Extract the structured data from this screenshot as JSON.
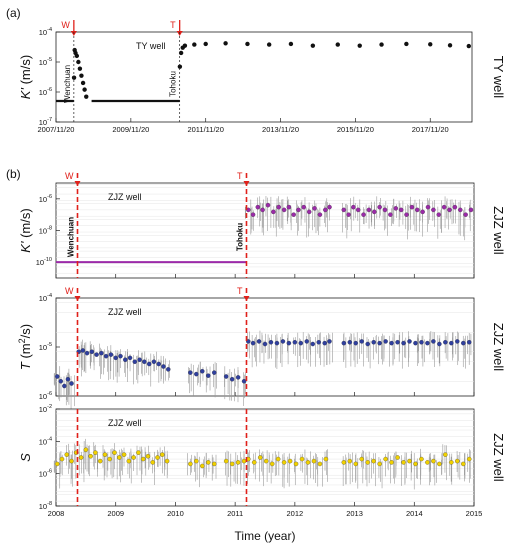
{
  "chart_data": [
    {
      "panel": "(a)",
      "type": "scatter",
      "title": "TY well",
      "side_label": "TY well",
      "ylabel": "K' (m/s)",
      "yscale": "log",
      "ylim": [
        1e-07,
        0.0001
      ],
      "ytick_exponents": [
        "-4",
        "-5",
        "-6",
        "-7"
      ],
      "xlim": [
        "2007-11-20",
        "2019-01-01"
      ],
      "xtick_labels": [
        "2007/11/20",
        "2009/11/20",
        "2011/11/20",
        "2013/11/20",
        "2015/11/20",
        "2017/11/20"
      ],
      "events": [
        {
          "marker": "W",
          "label": "Wenchuan",
          "date": "2008-05-12"
        },
        {
          "marker": "T",
          "label": "Tohoku",
          "date": "2011-03-11"
        }
      ],
      "series": [
        {
          "color": "#111111",
          "segments": [
            {
              "from": "2007-11-20",
              "to": "2008-05-10",
              "value": 5e-07
            },
            {
              "from": "2008-11-01",
              "to": "2011-03-10",
              "value": 5e-07
            }
          ],
          "points": [
            [
              "2008-05-14",
              3e-06
            ],
            [
              "2008-05-20",
              2.5e-05
            ],
            [
              "2008-05-28",
              2e-05
            ],
            [
              "2008-06-10",
              1.6e-05
            ],
            [
              "2008-06-25",
              1e-05
            ],
            [
              "2008-07-10",
              6e-06
            ],
            [
              "2008-07-25",
              3.5e-06
            ],
            [
              "2008-08-10",
              2e-06
            ],
            [
              "2008-08-25",
              1.2e-06
            ],
            [
              "2008-09-10",
              7e-07
            ],
            [
              "2011-03-13",
              7e-06
            ],
            [
              "2011-03-25",
              2e-05
            ],
            [
              "2011-04-10",
              3e-05
            ],
            [
              "2011-05-01",
              3.5e-05
            ],
            [
              "2011-08-01",
              3.8e-05
            ],
            [
              "2011-11-20",
              4e-05
            ],
            [
              "2012-06-01",
              4.2e-05
            ],
            [
              "2013-01-01",
              4e-05
            ],
            [
              "2013-08-01",
              3.8e-05
            ],
            [
              "2014-03-01",
              4e-05
            ],
            [
              "2014-10-01",
              3.5e-05
            ],
            [
              "2015-06-01",
              3.8e-05
            ],
            [
              "2016-01-01",
              3.5e-05
            ],
            [
              "2016-08-01",
              3.8e-05
            ],
            [
              "2017-04-01",
              4e-05
            ],
            [
              "2017-11-20",
              3.9e-05
            ],
            [
              "2018-06-01",
              3.6e-05
            ],
            [
              "2018-12-01",
              3.4e-05
            ]
          ]
        }
      ]
    },
    {
      "panel": "(b)",
      "type": "scatter",
      "title": "ZJZ well",
      "side_label": "ZJZ well",
      "ylabel": "K' (m/s)",
      "yscale": "log",
      "ylim": [
        1e-11,
        1e-05
      ],
      "ytick_exponents": [
        "-6",
        "-8",
        "-10"
      ],
      "xlim": [
        2008.0,
        2015.0
      ],
      "events": [
        {
          "marker": "W",
          "label": "Wenchuan",
          "year": 2008.36
        },
        {
          "marker": "T",
          "label": "Tohoku",
          "year": 2011.19
        }
      ],
      "series": [
        {
          "color": "#9b2aa8",
          "segments": [
            {
              "from": 2008.0,
              "to": 2011.19,
              "value": 1e-10
            }
          ],
          "points": [
            [
              2011.22,
              2e-07
            ],
            [
              2011.3,
              1e-07
            ],
            [
              2011.38,
              3e-07
            ],
            [
              2011.46,
              2e-07
            ],
            [
              2011.55,
              4e-07
            ],
            [
              2011.64,
              1.5e-07
            ],
            [
              2011.73,
              3e-07
            ],
            [
              2011.82,
              2e-07
            ],
            [
              2011.9,
              3e-07
            ],
            [
              2011.98,
              1e-07
            ],
            [
              2012.06,
              2e-07
            ],
            [
              2012.15,
              3e-07
            ],
            [
              2012.24,
              1.5e-07
            ],
            [
              2012.33,
              2.5e-07
            ],
            [
              2012.42,
              1e-07
            ],
            [
              2012.51,
              2e-07
            ],
            [
              2012.58,
              3e-07
            ],
            [
              2012.82,
              2e-07
            ],
            [
              2012.9,
              1e-07
            ],
            [
              2012.98,
              3e-07
            ],
            [
              2013.06,
              2e-07
            ],
            [
              2013.15,
              1e-07
            ],
            [
              2013.24,
              2e-07
            ],
            [
              2013.33,
              1.5e-07
            ],
            [
              2013.42,
              3e-07
            ],
            [
              2013.51,
              2e-07
            ],
            [
              2013.6,
              1e-07
            ],
            [
              2013.69,
              2.5e-07
            ],
            [
              2013.78,
              2e-07
            ],
            [
              2013.87,
              1e-07
            ],
            [
              2013.96,
              3e-07
            ],
            [
              2014.05,
              2e-07
            ],
            [
              2014.14,
              1.5e-07
            ],
            [
              2014.23,
              3e-07
            ],
            [
              2014.32,
              2e-07
            ],
            [
              2014.41,
              1e-07
            ],
            [
              2014.5,
              3e-07
            ],
            [
              2014.59,
              2e-07
            ],
            [
              2014.68,
              3e-07
            ],
            [
              2014.77,
              2e-07
            ],
            [
              2014.86,
              1e-07
            ],
            [
              2014.95,
              2e-07
            ]
          ]
        }
      ]
    },
    {
      "panel": "(b)",
      "type": "scatter",
      "title": "ZJZ well",
      "side_label": "ZJZ well",
      "ylabel": "T (m2/s)",
      "yscale": "log",
      "ylim": [
        1e-06,
        0.0001
      ],
      "ytick_exponents": [
        "-4",
        "-5",
        "-6"
      ],
      "xlim": [
        2008.0,
        2015.0
      ],
      "events": [
        {
          "marker": "W",
          "year": 2008.36
        },
        {
          "marker": "T",
          "year": 2011.19
        }
      ],
      "series": [
        {
          "color": "#2f3f9e",
          "points": [
            [
              2008.02,
              2.5e-06
            ],
            [
              2008.08,
              2e-06
            ],
            [
              2008.14,
              1.6e-06
            ],
            [
              2008.2,
              2.2e-06
            ],
            [
              2008.26,
              1.8e-06
            ],
            [
              2008.38,
              8e-06
            ],
            [
              2008.45,
              8.5e-06
            ],
            [
              2008.52,
              7.5e-06
            ],
            [
              2008.6,
              8e-06
            ],
            [
              2008.68,
              7e-06
            ],
            [
              2008.76,
              7.5e-06
            ],
            [
              2008.84,
              6.5e-06
            ],
            [
              2008.92,
              7e-06
            ],
            [
              2009.0,
              6e-06
            ],
            [
              2009.08,
              6.5e-06
            ],
            [
              2009.16,
              5.5e-06
            ],
            [
              2009.24,
              6e-06
            ],
            [
              2009.32,
              5e-06
            ],
            [
              2009.4,
              5.5e-06
            ],
            [
              2009.48,
              5e-06
            ],
            [
              2009.56,
              4.5e-06
            ],
            [
              2009.64,
              5e-06
            ],
            [
              2009.72,
              4.5e-06
            ],
            [
              2009.8,
              4e-06
            ],
            [
              2009.88,
              3.5e-06
            ],
            [
              2010.25,
              3e-06
            ],
            [
              2010.35,
              2.8e-06
            ],
            [
              2010.45,
              3.2e-06
            ],
            [
              2010.55,
              2.6e-06
            ],
            [
              2010.65,
              3e-06
            ],
            [
              2010.85,
              2.5e-06
            ],
            [
              2010.95,
              2.2e-06
            ],
            [
              2011.05,
              2.4e-06
            ],
            [
              2011.15,
              2e-06
            ],
            [
              2011.22,
              1.3e-05
            ],
            [
              2011.3,
              1.2e-05
            ],
            [
              2011.4,
              1.3e-05
            ],
            [
              2011.5,
              1.15e-05
            ],
            [
              2011.6,
              1.25e-05
            ],
            [
              2011.7,
              1.2e-05
            ],
            [
              2011.8,
              1.3e-05
            ],
            [
              2011.9,
              1.2e-05
            ],
            [
              2012.0,
              1.25e-05
            ],
            [
              2012.1,
              1.2e-05
            ],
            [
              2012.2,
              1.3e-05
            ],
            [
              2012.3,
              1.15e-05
            ],
            [
              2012.4,
              1.25e-05
            ],
            [
              2012.5,
              1.2e-05
            ],
            [
              2012.58,
              1.3e-05
            ],
            [
              2012.82,
              1.2e-05
            ],
            [
              2012.92,
              1.25e-05
            ],
            [
              2013.02,
              1.2e-05
            ],
            [
              2013.12,
              1.3e-05
            ],
            [
              2013.22,
              1.15e-05
            ],
            [
              2013.32,
              1.25e-05
            ],
            [
              2013.42,
              1.2e-05
            ],
            [
              2013.52,
              1.3e-05
            ],
            [
              2013.62,
              1.2e-05
            ],
            [
              2013.72,
              1.25e-05
            ],
            [
              2013.82,
              1.2e-05
            ],
            [
              2013.92,
              1.3e-05
            ],
            [
              2014.02,
              1.2e-05
            ],
            [
              2014.12,
              1.25e-05
            ],
            [
              2014.22,
              1.2e-05
            ],
            [
              2014.32,
              1.3e-05
            ],
            [
              2014.42,
              1.15e-05
            ],
            [
              2014.52,
              1.25e-05
            ],
            [
              2014.62,
              1.2e-05
            ],
            [
              2014.72,
              1.3e-05
            ],
            [
              2014.82,
              1.2e-05
            ],
            [
              2014.92,
              1.25e-05
            ]
          ]
        }
      ]
    },
    {
      "panel": "(b)",
      "type": "scatter",
      "title": "ZJZ well",
      "side_label": "ZJZ well",
      "ylabel": "S",
      "yscale": "log",
      "ylim": [
        1e-08,
        0.01
      ],
      "ytick_exponents": [
        "-2",
        "-4",
        "-6",
        "-8"
      ],
      "xlim": [
        2008.0,
        2015.0
      ],
      "xtick_labels": [
        "2008",
        "2009",
        "2010",
        "2011",
        "2012",
        "2013",
        "2014",
        "2015"
      ],
      "xlabel": "Time (year)",
      "events": [
        {
          "year": 2008.36
        },
        {
          "year": 2011.19
        }
      ],
      "series": [
        {
          "color": "#f0d000",
          "points": [
            [
              2008.02,
              4e-06
            ],
            [
              2008.1,
              8e-06
            ],
            [
              2008.18,
              1.5e-05
            ],
            [
              2008.26,
              6e-06
            ],
            [
              2008.34,
              2e-05
            ],
            [
              2008.42,
              1e-05
            ],
            [
              2008.5,
              3e-05
            ],
            [
              2008.58,
              1.2e-05
            ],
            [
              2008.66,
              2e-05
            ],
            [
              2008.74,
              6e-06
            ],
            [
              2008.82,
              1.5e-05
            ],
            [
              2008.9,
              8e-06
            ],
            [
              2008.98,
              2e-05
            ],
            [
              2009.06,
              1e-05
            ],
            [
              2009.14,
              1.5e-05
            ],
            [
              2009.22,
              6e-06
            ],
            [
              2009.3,
              1e-05
            ],
            [
              2009.38,
              2e-05
            ],
            [
              2009.46,
              8e-06
            ],
            [
              2009.54,
              1.2e-05
            ],
            [
              2009.62,
              5e-06
            ],
            [
              2009.7,
              1e-05
            ],
            [
              2009.78,
              1.5e-05
            ],
            [
              2009.86,
              6e-06
            ],
            [
              2010.25,
              4e-06
            ],
            [
              2010.35,
              6e-06
            ],
            [
              2010.45,
              3e-06
            ],
            [
              2010.55,
              5e-06
            ],
            [
              2010.65,
              4e-06
            ],
            [
              2010.85,
              6e-06
            ],
            [
              2010.95,
              4e-06
            ],
            [
              2011.05,
              5e-06
            ],
            [
              2011.15,
              6e-06
            ],
            [
              2011.22,
              8e-06
            ],
            [
              2011.32,
              5e-06
            ],
            [
              2011.42,
              1e-05
            ],
            [
              2011.52,
              6e-06
            ],
            [
              2011.62,
              4e-06
            ],
            [
              2011.72,
              8e-06
            ],
            [
              2011.82,
              5e-06
            ],
            [
              2011.92,
              6e-06
            ],
            [
              2012.02,
              4e-06
            ],
            [
              2012.12,
              8e-06
            ],
            [
              2012.22,
              5e-06
            ],
            [
              2012.32,
              6e-06
            ],
            [
              2012.42,
              4e-06
            ],
            [
              2012.52,
              8e-06
            ],
            [
              2012.82,
              5e-06
            ],
            [
              2012.92,
              6e-06
            ],
            [
              2013.02,
              4e-06
            ],
            [
              2013.12,
              8e-06
            ],
            [
              2013.22,
              5e-06
            ],
            [
              2013.32,
              6e-06
            ],
            [
              2013.42,
              4e-06
            ],
            [
              2013.52,
              8e-06
            ],
            [
              2013.62,
              5e-06
            ],
            [
              2013.72,
              1e-05
            ],
            [
              2013.82,
              5e-06
            ],
            [
              2013.92,
              6e-06
            ],
            [
              2014.02,
              4e-06
            ],
            [
              2014.12,
              8e-06
            ],
            [
              2014.22,
              5e-06
            ],
            [
              2014.32,
              6e-06
            ],
            [
              2014.42,
              4e-06
            ],
            [
              2014.52,
              1.5e-05
            ],
            [
              2014.62,
              5e-06
            ],
            [
              2014.72,
              6e-06
            ],
            [
              2014.82,
              4e-06
            ],
            [
              2014.92,
              8e-06
            ]
          ]
        }
      ]
    }
  ]
}
